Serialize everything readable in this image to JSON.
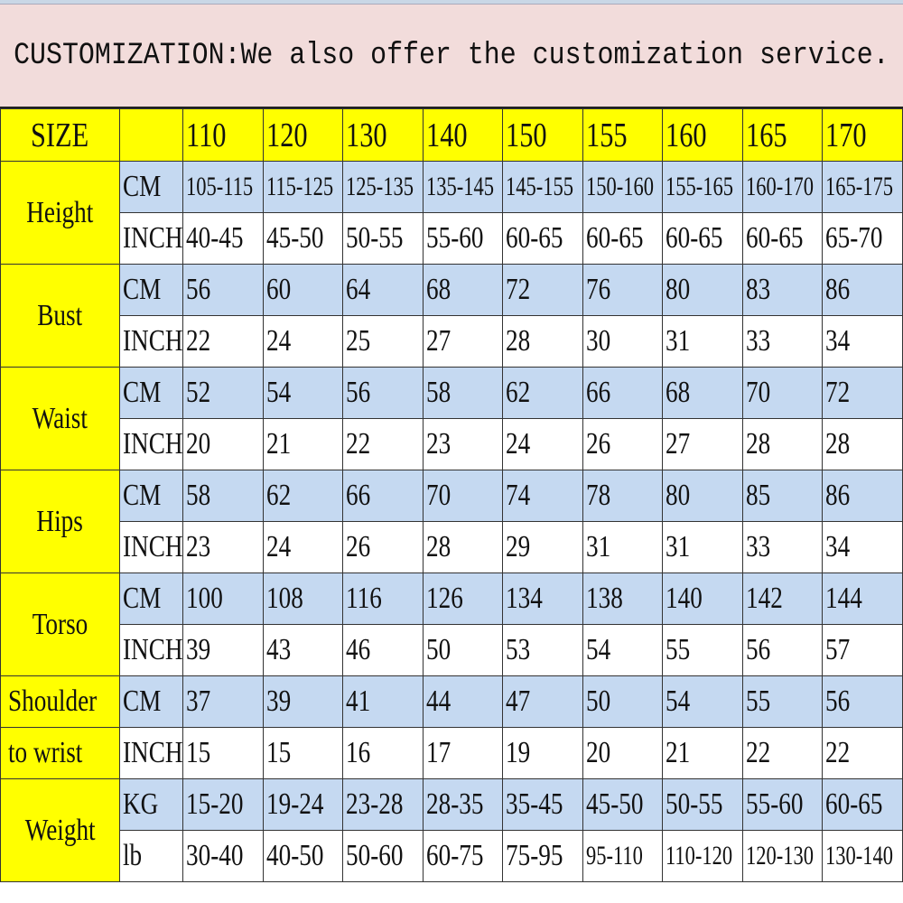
{
  "banner": "CUSTOMIZATION:We also offer the customization service.",
  "header": {
    "label": "SIZE",
    "sizes": [
      "110",
      "120",
      "130",
      "140",
      "150",
      "155",
      "160",
      "165",
      "170"
    ]
  },
  "colors": {
    "header_yellow": "#ffff00",
    "row_blue": "#c5d9f1",
    "banner_pink": "#f2dcdb"
  },
  "groups": [
    {
      "label": [
        "Height"
      ],
      "rows": [
        {
          "unit": "CM",
          "values": [
            "105-115",
            "115-125",
            "125-135",
            "135-145",
            "145-155",
            "150-160",
            "155-165",
            "160-170",
            "165-175"
          ]
        },
        {
          "unit": "INCH",
          "values": [
            "40-45",
            "45-50",
            "50-55",
            "55-60",
            "60-65",
            "60-65",
            "60-65",
            "60-65",
            "65-70"
          ]
        }
      ]
    },
    {
      "label": [
        "Bust"
      ],
      "rows": [
        {
          "unit": "CM",
          "values": [
            "56",
            "60",
            "64",
            "68",
            "72",
            "76",
            "80",
            "83",
            "86"
          ]
        },
        {
          "unit": "INCH",
          "values": [
            "22",
            "24",
            "25",
            "27",
            "28",
            "30",
            "31",
            "33",
            "34"
          ]
        }
      ]
    },
    {
      "label": [
        "Waist"
      ],
      "rows": [
        {
          "unit": "CM",
          "values": [
            "52",
            "54",
            "56",
            "58",
            "62",
            "66",
            "68",
            "70",
            "72"
          ]
        },
        {
          "unit": "INCH",
          "values": [
            "20",
            "21",
            "22",
            "23",
            "24",
            "26",
            "27",
            "28",
            "28"
          ]
        }
      ]
    },
    {
      "label": [
        "Hips"
      ],
      "rows": [
        {
          "unit": "CM",
          "values": [
            "58",
            "62",
            "66",
            "70",
            "74",
            "78",
            "80",
            "85",
            "86"
          ]
        },
        {
          "unit": "INCH",
          "values": [
            "23",
            "24",
            "26",
            "28",
            "29",
            "31",
            "31",
            "33",
            "34"
          ]
        }
      ]
    },
    {
      "label": [
        "Torso"
      ],
      "rows": [
        {
          "unit": "CM",
          "values": [
            "100",
            "108",
            "116",
            "126",
            "134",
            "138",
            "140",
            "142",
            "144"
          ]
        },
        {
          "unit": "INCH",
          "values": [
            "39",
            "43",
            "46",
            "50",
            "53",
            "54",
            "55",
            "56",
            "57"
          ]
        }
      ]
    },
    {
      "label": [
        "Shoulder",
        "to wrist"
      ],
      "rows": [
        {
          "unit": "CM",
          "values": [
            "37",
            "39",
            "41",
            "44",
            "47",
            "50",
            "54",
            "55",
            "56"
          ]
        },
        {
          "unit": "INCH",
          "values": [
            "15",
            "15",
            "16",
            "17",
            "19",
            "20",
            "21",
            "22",
            "22"
          ]
        }
      ]
    },
    {
      "label": [
        "Weight"
      ],
      "rows": [
        {
          "unit": "KG",
          "values": [
            "15-20",
            "19-24",
            "23-28",
            "28-35",
            "35-45",
            "45-50",
            "50-55",
            "55-60",
            "60-65"
          ]
        },
        {
          "unit": "lb",
          "values": [
            "30-40",
            "40-50",
            "50-60",
            "60-75",
            "75-95",
            "95-110",
            "110-120",
            "120-130",
            "130-140"
          ]
        }
      ]
    }
  ]
}
